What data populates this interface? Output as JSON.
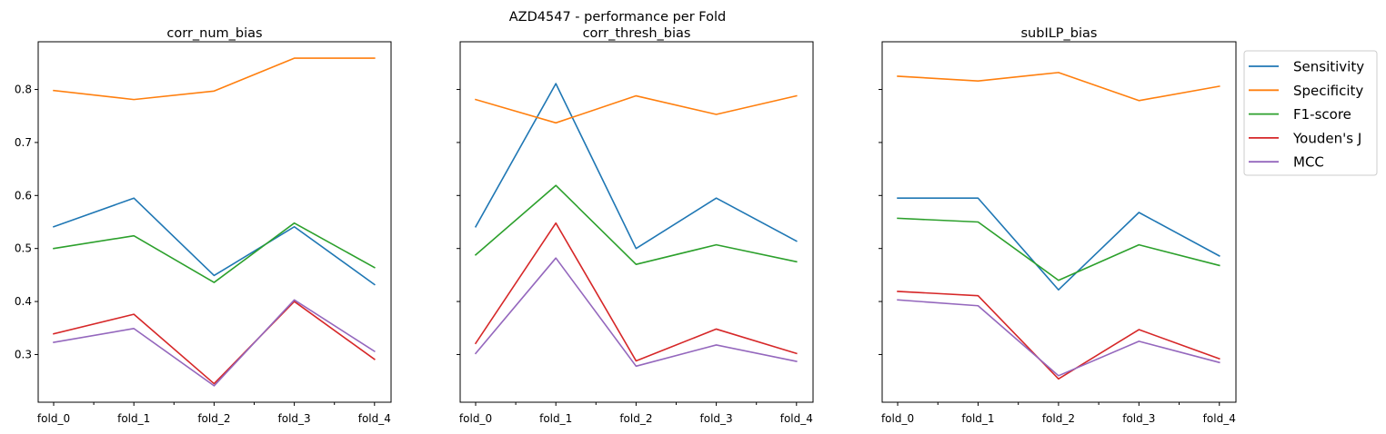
{
  "suptitle": "AZD4547 - performance per Fold",
  "legend_placement": "upper-right, outside last panel",
  "chart_data": [
    {
      "type": "line",
      "title": "corr_num_bias",
      "categories": [
        "fold_0",
        "fold_1",
        "fold_2",
        "fold_3",
        "fold_4"
      ],
      "ylim": [
        0.21,
        0.89
      ],
      "yticks": [
        0.3,
        0.4,
        0.5,
        0.6,
        0.7,
        0.8
      ],
      "ytick_labels": [
        "0.3",
        "0.4",
        "0.5",
        "0.6",
        "0.7",
        "0.8"
      ],
      "show_ytick_labels": true,
      "grid": false,
      "series": [
        {
          "name": "Sensitivity",
          "color": "#1f77b4",
          "values": [
            0.541,
            0.595,
            0.449,
            0.541,
            0.432
          ]
        },
        {
          "name": "Specificity",
          "color": "#ff7f0e",
          "values": [
            0.798,
            0.781,
            0.797,
            0.859,
            0.859
          ]
        },
        {
          "name": "F1-score",
          "color": "#2ca02c",
          "values": [
            0.5,
            0.524,
            0.436,
            0.548,
            0.464
          ]
        },
        {
          "name": "Youden's J",
          "color": "#d62728",
          "values": [
            0.339,
            0.376,
            0.245,
            0.4,
            0.291
          ]
        },
        {
          "name": "MCC",
          "color": "#9467bd",
          "values": [
            0.323,
            0.349,
            0.241,
            0.403,
            0.306
          ]
        }
      ]
    },
    {
      "type": "line",
      "title": "corr_thresh_bias",
      "categories": [
        "fold_0",
        "fold_1",
        "fold_2",
        "fold_3",
        "fold_4"
      ],
      "ylim": [
        0.21,
        0.89
      ],
      "yticks": [
        0.3,
        0.4,
        0.5,
        0.6,
        0.7,
        0.8
      ],
      "show_ytick_labels": false,
      "grid": false,
      "series": [
        {
          "name": "Sensitivity",
          "color": "#1f77b4",
          "values": [
            0.541,
            0.811,
            0.5,
            0.595,
            0.514
          ]
        },
        {
          "name": "Specificity",
          "color": "#ff7f0e",
          "values": [
            0.781,
            0.737,
            0.788,
            0.753,
            0.788
          ]
        },
        {
          "name": "F1-score",
          "color": "#2ca02c",
          "values": [
            0.488,
            0.619,
            0.47,
            0.507,
            0.475
          ]
        },
        {
          "name": "Youden's J",
          "color": "#d62728",
          "values": [
            0.321,
            0.548,
            0.288,
            0.348,
            0.302
          ]
        },
        {
          "name": "MCC",
          "color": "#9467bd",
          "values": [
            0.302,
            0.482,
            0.278,
            0.318,
            0.287
          ]
        }
      ]
    },
    {
      "type": "line",
      "title": "subILP_bias",
      "categories": [
        "fold_0",
        "fold_1",
        "fold_2",
        "fold_3",
        "fold_4"
      ],
      "ylim": [
        0.21,
        0.89
      ],
      "yticks": [
        0.3,
        0.4,
        0.5,
        0.6,
        0.7,
        0.8
      ],
      "show_ytick_labels": false,
      "grid": false,
      "series": [
        {
          "name": "Sensitivity",
          "color": "#1f77b4",
          "values": [
            0.595,
            0.595,
            0.422,
            0.568,
            0.486
          ]
        },
        {
          "name": "Specificity",
          "color": "#ff7f0e",
          "values": [
            0.825,
            0.816,
            0.832,
            0.779,
            0.806
          ]
        },
        {
          "name": "F1-score",
          "color": "#2ca02c",
          "values": [
            0.557,
            0.55,
            0.44,
            0.507,
            0.468
          ]
        },
        {
          "name": "Youden's J",
          "color": "#d62728",
          "values": [
            0.419,
            0.411,
            0.254,
            0.347,
            0.292
          ]
        },
        {
          "name": "MCC",
          "color": "#9467bd",
          "values": [
            0.403,
            0.392,
            0.26,
            0.325,
            0.285
          ]
        }
      ]
    }
  ]
}
